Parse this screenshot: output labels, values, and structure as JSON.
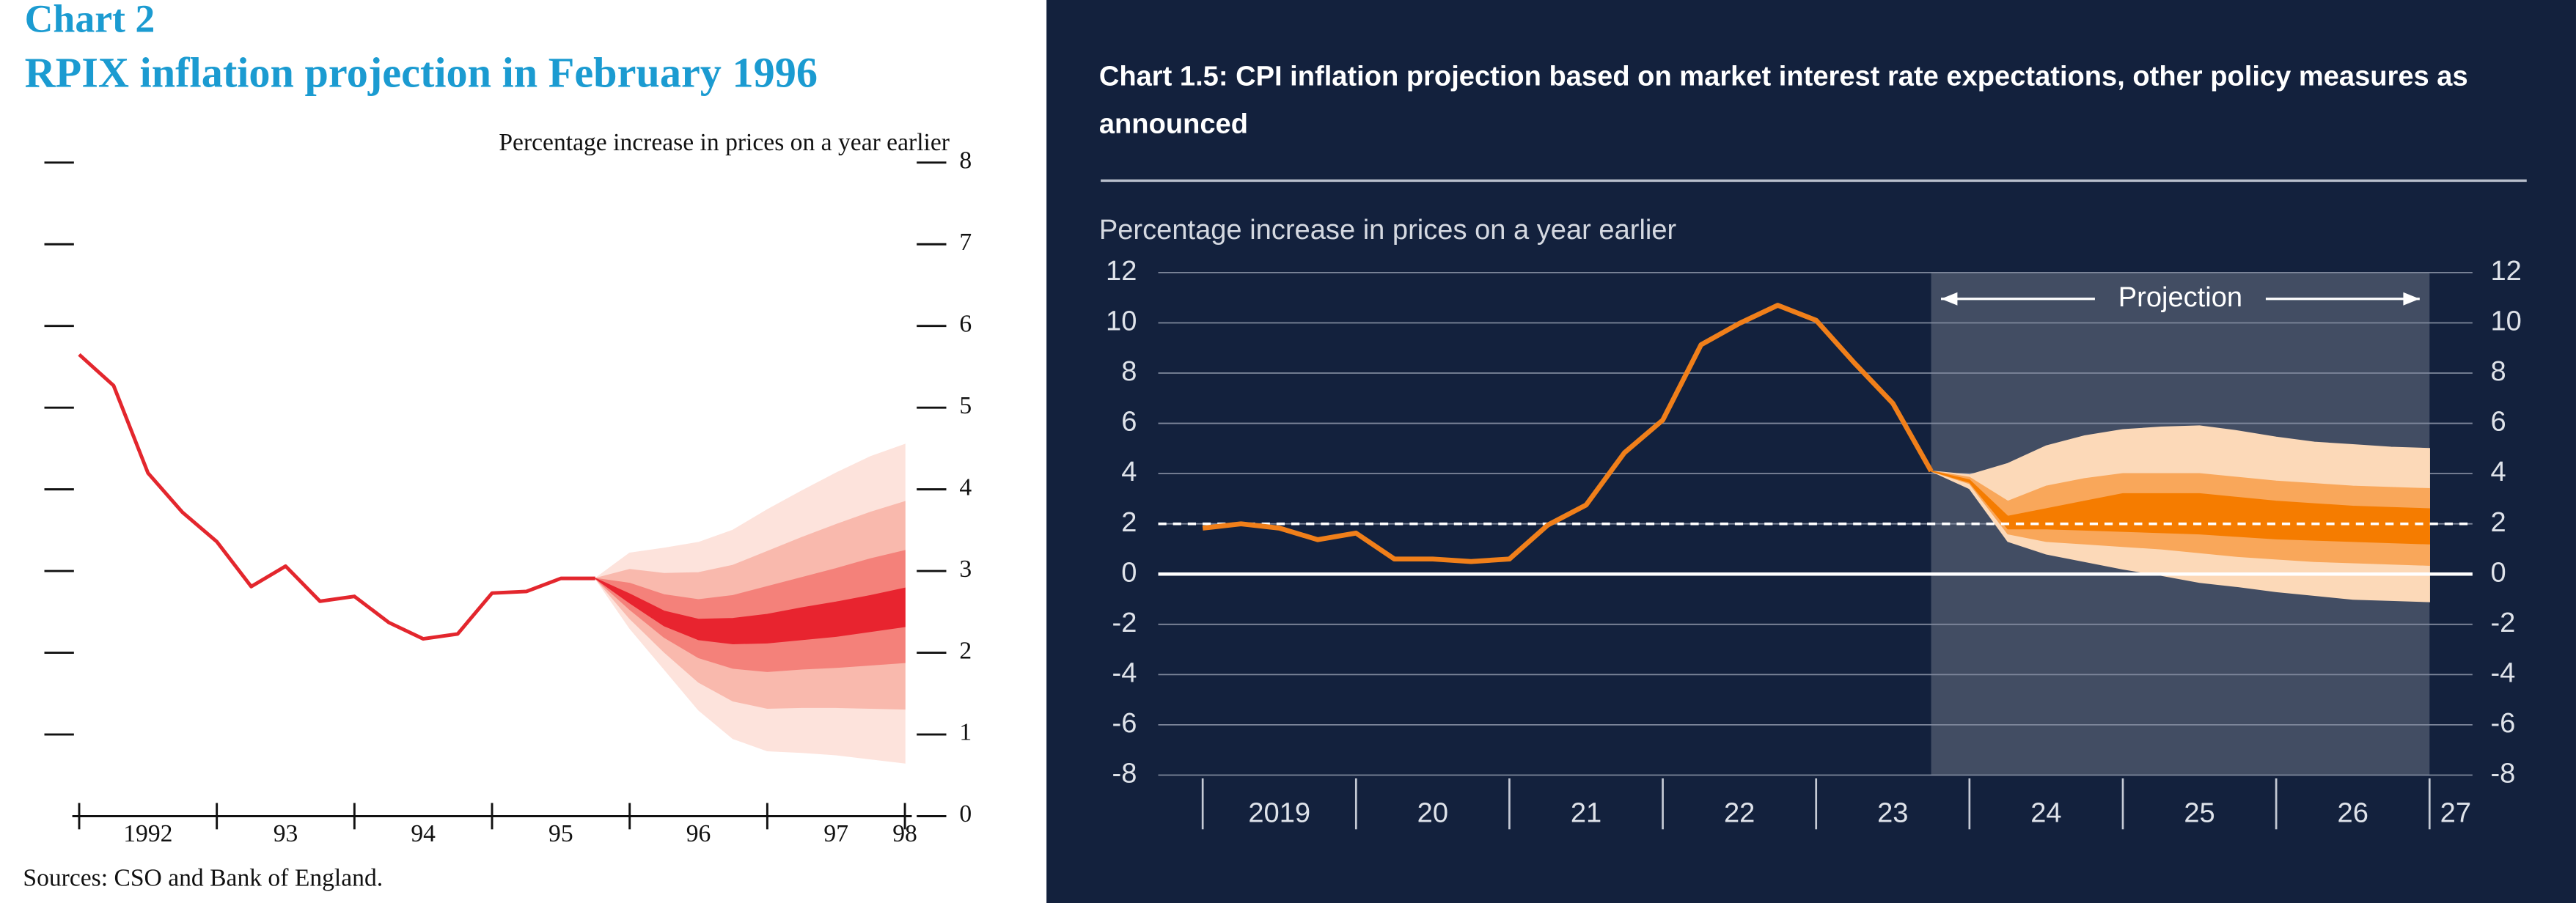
{
  "chart_data": [
    {
      "type": "fan",
      "chart_number": "Chart 2",
      "title": "RPIX inflation projection in February 1996",
      "y_label": "Percentage increase in prices on a year earlier",
      "source": "Sources:  CSO and Bank of England.",
      "background": "#ffffff",
      "xlim": [
        1991.95,
        1998.05
      ],
      "xticks": [
        {
          "value": 1992.5,
          "label": "1992"
        },
        {
          "value": 1993.5,
          "label": "93"
        },
        {
          "value": 1994.5,
          "label": "94"
        },
        {
          "value": 1995.5,
          "label": "95"
        },
        {
          "value": 1996.5,
          "label": "96"
        },
        {
          "value": 1997.5,
          "label": "97"
        },
        {
          "value": 1998,
          "label": "98"
        }
      ],
      "xticks_minor": [
        1992,
        1993,
        1994,
        1995,
        1996,
        1997,
        1998
      ],
      "ylim": [
        0,
        8
      ],
      "yticks": [
        0,
        1,
        2,
        3,
        4,
        5,
        6,
        7,
        8
      ],
      "y_axis_side": "right",
      "grid": false,
      "series": [
        {
          "color": "#e3262d",
          "x": [
            1992,
            1992.25,
            1992.5,
            1992.75,
            1993,
            1993.25,
            1993.5,
            1993.75,
            1994,
            1994.25,
            1994.5,
            1994.75,
            1995,
            1995.25,
            1995.5,
            1995.75
          ],
          "values": [
            5.65,
            5.27,
            4.2,
            3.72,
            3.36,
            2.81,
            3.06,
            2.63,
            2.69,
            2.37,
            2.17,
            2.23,
            2.73,
            2.75,
            2.91,
            2.91
          ]
        }
      ],
      "fan_x": [
        1995.75,
        1996,
        1996.25,
        1996.5,
        1996.75,
        1997,
        1997.25,
        1997.5,
        1997.75,
        1998
      ],
      "bands": [
        {
          "color": "#fde3dc",
          "upper": [
            2.91,
            3.22,
            3.28,
            3.35,
            3.5,
            3.75,
            3.98,
            4.2,
            4.4,
            4.55
          ],
          "lower": [
            2.91,
            2.3,
            1.8,
            1.3,
            0.95,
            0.8,
            0.78,
            0.75,
            0.7,
            0.65
          ]
        },
        {
          "color": "#f9b9ad",
          "upper": [
            2.91,
            3.02,
            2.97,
            2.98,
            3.07,
            3.24,
            3.41,
            3.57,
            3.72,
            3.85
          ],
          "lower": [
            2.91,
            2.42,
            2.01,
            1.64,
            1.41,
            1.32,
            1.33,
            1.33,
            1.32,
            1.31
          ]
        },
        {
          "color": "#f4817a",
          "upper": [
            2.91,
            2.85,
            2.71,
            2.65,
            2.7,
            2.81,
            2.92,
            3.03,
            3.15,
            3.25
          ],
          "lower": [
            2.91,
            2.53,
            2.19,
            1.94,
            1.81,
            1.77,
            1.8,
            1.82,
            1.85,
            1.88
          ]
        },
        {
          "color": "#e8242f",
          "upper": [
            2.91,
            2.72,
            2.51,
            2.41,
            2.42,
            2.47,
            2.55,
            2.62,
            2.7,
            2.79
          ],
          "lower": [
            2.91,
            2.61,
            2.33,
            2.16,
            2.11,
            2.12,
            2.16,
            2.2,
            2.26,
            2.32
          ]
        }
      ]
    },
    {
      "type": "fan",
      "title": "Chart 1.5: CPI inflation projection based on market interest rate expectations, other policy measures as announced",
      "y_label": "Percentage increase in prices on a year earlier",
      "background": "#13213d",
      "xlim": [
        2018.71,
        2027.28
      ],
      "xticks": [
        {
          "value": 2019.5,
          "label": "2019"
        },
        {
          "value": 2020.5,
          "label": "20"
        },
        {
          "value": 2021.5,
          "label": "21"
        },
        {
          "value": 2022.5,
          "label": "22"
        },
        {
          "value": 2023.5,
          "label": "23"
        },
        {
          "value": 2024.5,
          "label": "24"
        },
        {
          "value": 2025.5,
          "label": "25"
        },
        {
          "value": 2026.5,
          "label": "26"
        },
        {
          "value": 2027.17,
          "label": "27"
        }
      ],
      "xticks_minor": [
        2019,
        2020,
        2021,
        2022,
        2023,
        2024,
        2025,
        2026,
        2027
      ],
      "ylim": [
        -8,
        12
      ],
      "yticks": [
        -8,
        -6,
        -4,
        -2,
        0,
        2,
        4,
        6,
        8,
        10,
        12
      ],
      "y_axis_side": "both",
      "grid": true,
      "shaded_region": {
        "xlim": [
          2023.75,
          2027.0
        ],
        "label": "Projection"
      },
      "reference_lines": [
        {
          "value": 0,
          "dashed": false
        },
        {
          "value": 2,
          "dashed": true
        }
      ],
      "series": [
        {
          "color": "#f07f1a",
          "x": [
            2019,
            2019.25,
            2019.5,
            2019.75,
            2020,
            2020.25,
            2020.5,
            2020.75,
            2021,
            2021.25,
            2021.5,
            2021.75,
            2022,
            2022.25,
            2022.5,
            2022.75,
            2023,
            2023.25,
            2023.5,
            2023.75
          ],
          "values": [
            1.83,
            2.0,
            1.83,
            1.37,
            1.63,
            0.6,
            0.6,
            0.5,
            0.6,
            1.95,
            2.75,
            4.83,
            6.13,
            9.13,
            9.98,
            10.7,
            10.1,
            8.4,
            6.8,
            4.1
          ]
        }
      ],
      "fan_x": [
        2023.75,
        2024,
        2024.25,
        2024.5,
        2024.75,
        2025,
        2025.25,
        2025.5,
        2025.75,
        2026,
        2026.25,
        2026.5,
        2026.75,
        2027
      ],
      "bands": [
        {
          "color": "#fcd9b8",
          "upper": [
            4.1,
            3.95,
            4.4,
            5.1,
            5.5,
            5.75,
            5.85,
            5.9,
            5.7,
            5.45,
            5.25,
            5.15,
            5.05,
            5.0
          ],
          "lower": [
            4.1,
            3.4,
            1.3,
            0.8,
            0.5,
            0.2,
            -0.05,
            -0.33,
            -0.5,
            -0.7,
            -0.85,
            -1.0,
            -1.05,
            -1.1
          ]
        },
        {
          "color": "#f9a75a",
          "upper": [
            4.1,
            3.85,
            2.9,
            3.5,
            3.8,
            4.0,
            4.0,
            4.0,
            3.85,
            3.7,
            3.6,
            3.5,
            3.45,
            3.4
          ],
          "lower": [
            4.1,
            3.6,
            1.6,
            1.3,
            1.2,
            1.1,
            1.0,
            0.85,
            0.7,
            0.6,
            0.5,
            0.45,
            0.4,
            0.35
          ]
        },
        {
          "color": "#f57c00",
          "upper": [
            4.1,
            3.75,
            2.3,
            2.6,
            2.9,
            3.2,
            3.2,
            3.2,
            3.05,
            2.9,
            2.8,
            2.7,
            2.65,
            2.6
          ],
          "lower": [
            4.1,
            3.65,
            1.8,
            1.8,
            1.75,
            1.7,
            1.65,
            1.6,
            1.5,
            1.4,
            1.35,
            1.3,
            1.25,
            1.2
          ]
        }
      ]
    }
  ]
}
